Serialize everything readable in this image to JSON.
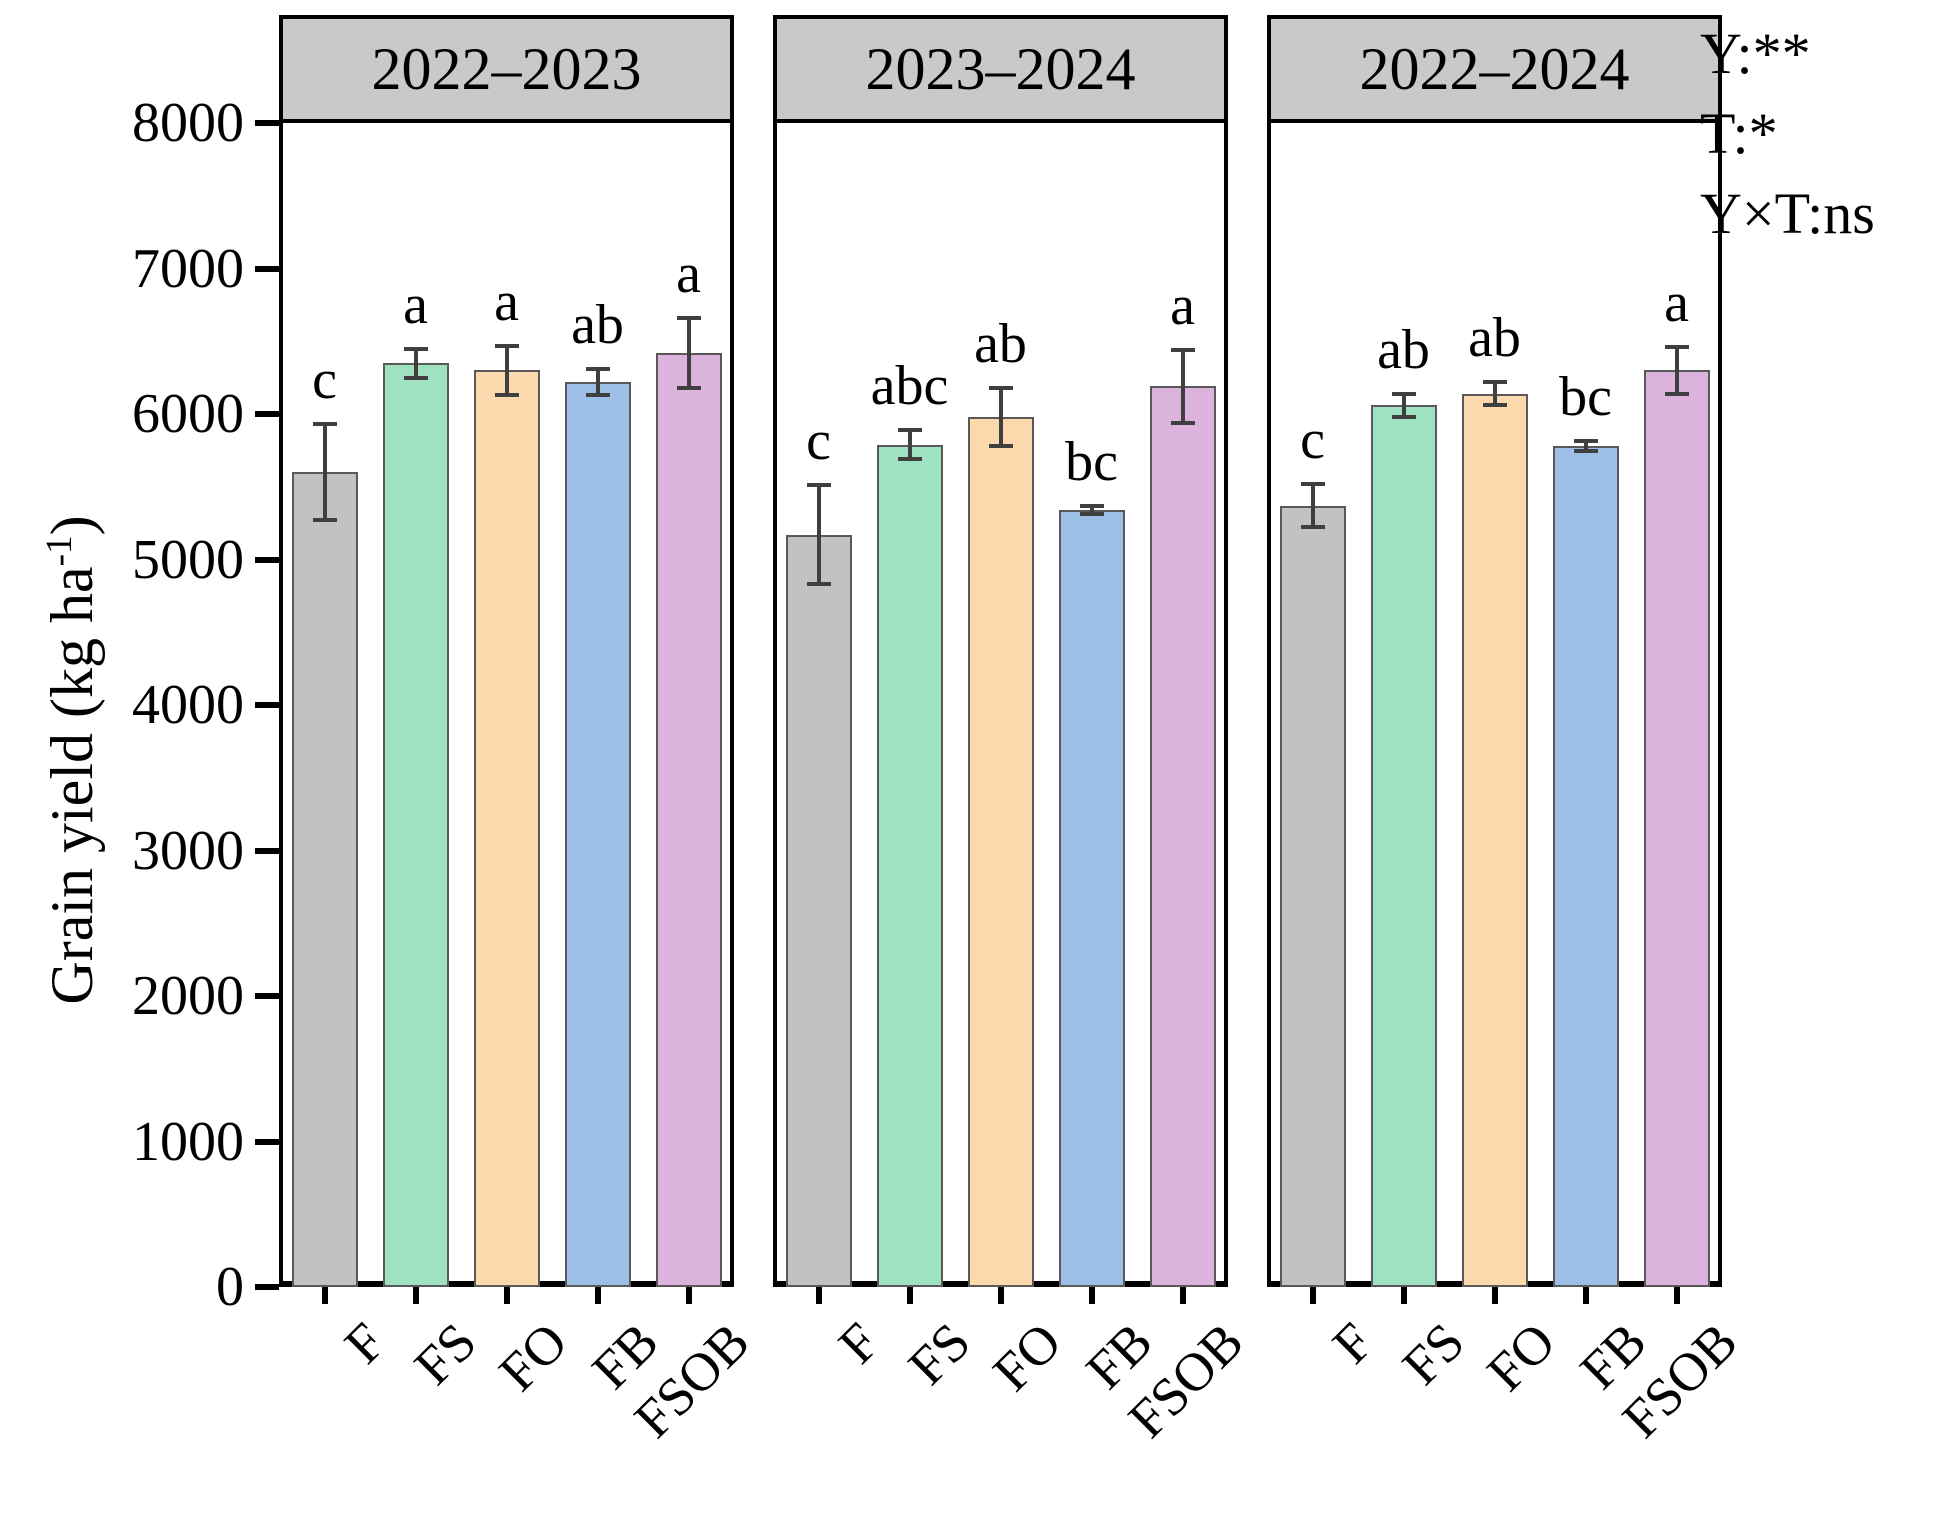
{
  "figure": {
    "y_axis_label_pre": "Grain yield (kg ha",
    "y_axis_label_sup": "-1",
    "y_axis_label_post": ")",
    "stats_annotations": [
      "Y:**",
      "T:*",
      "Y×T:ns"
    ]
  },
  "chart_data": {
    "type": "bar",
    "categories": [
      "F",
      "FS",
      "FO",
      "FB",
      "FSOB"
    ],
    "ylabel": "Grain yield (kg ha-1)",
    "ylim": [
      0,
      8000
    ],
    "yticks": [
      0,
      1000,
      2000,
      3000,
      4000,
      5000,
      6000,
      7000,
      8000
    ],
    "grid": false,
    "error_bars": true,
    "legend": "none",
    "panels": [
      {
        "title": "2022–2023",
        "values": [
          5600,
          6350,
          6300,
          6220,
          6420
        ],
        "errors": [
          330,
          100,
          170,
          90,
          240
        ],
        "letters": [
          "c",
          "a",
          "a",
          "ab",
          "a"
        ]
      },
      {
        "title": "2023–2024",
        "values": [
          5170,
          5790,
          5980,
          5340,
          6190
        ],
        "errors": [
          340,
          100,
          200,
          30,
          250
        ],
        "letters": [
          "c",
          "abc",
          "ab",
          "bc",
          "a"
        ]
      },
      {
        "title": "2022–2024",
        "values": [
          5370,
          6060,
          6140,
          5780,
          6300
        ],
        "errors": [
          150,
          80,
          80,
          35,
          160
        ],
        "letters": [
          "c",
          "ab",
          "ab",
          "bc",
          "a"
        ]
      }
    ],
    "colors": {
      "bar_fills": [
        "#c2c2c2",
        "#9fe2c2",
        "#fcd9ac",
        "#9dbee6",
        "#dcb3dc"
      ],
      "bar_border": "#595959",
      "error_bar": "#3f3f3f",
      "header_bg": "#c9c9c9",
      "frame": "#000000",
      "text": "#000000"
    }
  }
}
